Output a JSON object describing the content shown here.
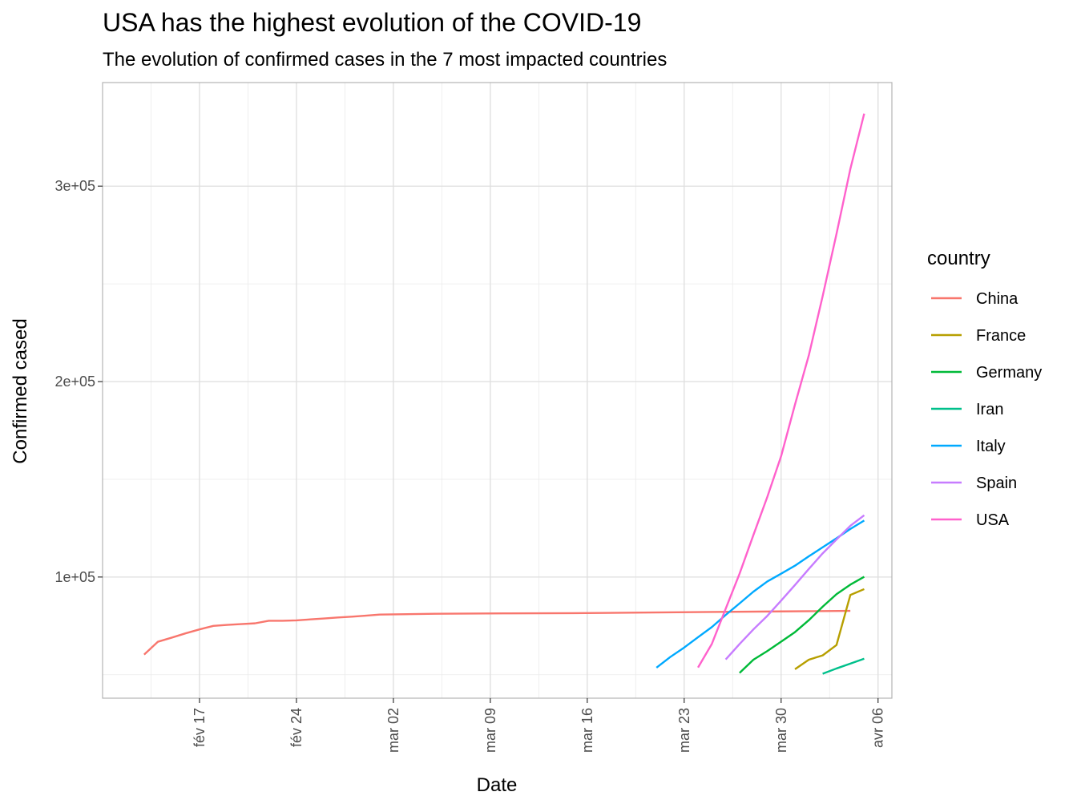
{
  "chart_data": {
    "type": "line",
    "title": "USA has the highest evolution of the COVID-19",
    "subtitle": "The evolution of confirmed cases in the 7 most impacted countries",
    "xlabel": "Date",
    "ylabel": "Confirmed cased",
    "x_axis": {
      "type": "date",
      "range": [
        "2020-02-10",
        "2020-04-07"
      ],
      "ticks": [
        {
          "date": "2020-02-17",
          "label": "fév 17"
        },
        {
          "date": "2020-02-24",
          "label": "fév 24"
        },
        {
          "date": "2020-03-02",
          "label": "mar 02"
        },
        {
          "date": "2020-03-09",
          "label": "mar 09"
        },
        {
          "date": "2020-03-16",
          "label": "mar 16"
        },
        {
          "date": "2020-03-23",
          "label": "mar 23"
        },
        {
          "date": "2020-03-30",
          "label": "mar 30"
        },
        {
          "date": "2020-04-06",
          "label": "avr 06"
        }
      ]
    },
    "y_axis": {
      "range": [
        38000,
        353000
      ],
      "ticks": [
        {
          "value": 100000,
          "label": "1e+05"
        },
        {
          "value": 200000,
          "label": "2e+05"
        },
        {
          "value": 300000,
          "label": "3e+05"
        }
      ],
      "minor_ticks": [
        50000,
        150000,
        250000
      ]
    },
    "grid": true,
    "legend": {
      "title": "country",
      "position": "right"
    },
    "series": [
      {
        "name": "China",
        "color": "#F8766D",
        "points": [
          [
            "2020-02-13",
            60300
          ],
          [
            "2020-02-14",
            66900
          ],
          [
            "2020-02-15",
            69000
          ],
          [
            "2020-02-16",
            71200
          ],
          [
            "2020-02-17",
            73200
          ],
          [
            "2020-02-18",
            75000
          ],
          [
            "2020-02-19",
            75500
          ],
          [
            "2020-02-20",
            75900
          ],
          [
            "2020-02-21",
            76300
          ],
          [
            "2020-02-22",
            77600
          ],
          [
            "2020-02-23",
            77600
          ],
          [
            "2020-02-24",
            77800
          ],
          [
            "2020-02-25",
            78300
          ],
          [
            "2020-02-26",
            78800
          ],
          [
            "2020-02-27",
            79300
          ],
          [
            "2020-02-28",
            79700
          ],
          [
            "2020-02-29",
            80200
          ],
          [
            "2020-03-01",
            80800
          ],
          [
            "2020-03-02",
            80900
          ],
          [
            "2020-03-05",
            81200
          ],
          [
            "2020-03-10",
            81400
          ],
          [
            "2020-03-15",
            81500
          ],
          [
            "2020-03-20",
            81800
          ],
          [
            "2020-03-25",
            82100
          ],
          [
            "2020-03-30",
            82400
          ],
          [
            "2020-04-04",
            82700
          ]
        ]
      },
      {
        "name": "France",
        "color": "#B79F00",
        "points": [
          [
            "2020-03-31",
            52800
          ],
          [
            "2020-04-01",
            57700
          ],
          [
            "2020-04-02",
            59900
          ],
          [
            "2020-04-03",
            65200
          ],
          [
            "2020-04-04",
            90800
          ],
          [
            "2020-04-05",
            93800
          ]
        ]
      },
      {
        "name": "Germany",
        "color": "#00BA38",
        "points": [
          [
            "2020-03-27",
            50900
          ],
          [
            "2020-03-28",
            57700
          ],
          [
            "2020-03-29",
            62100
          ],
          [
            "2020-03-30",
            66900
          ],
          [
            "2020-03-31",
            71800
          ],
          [
            "2020-04-01",
            77900
          ],
          [
            "2020-04-02",
            84800
          ],
          [
            "2020-04-03",
            91200
          ],
          [
            "2020-04-04",
            96100
          ],
          [
            "2020-04-05",
            100100
          ]
        ]
      },
      {
        "name": "Iran",
        "color": "#00C08B",
        "points": [
          [
            "2020-04-02",
            50500
          ],
          [
            "2020-04-03",
            53200
          ],
          [
            "2020-04-04",
            55700
          ],
          [
            "2020-04-05",
            58200
          ]
        ]
      },
      {
        "name": "Italy",
        "color": "#00A9FF",
        "points": [
          [
            "2020-03-21",
            53600
          ],
          [
            "2020-03-22",
            59100
          ],
          [
            "2020-03-23",
            63900
          ],
          [
            "2020-03-24",
            69200
          ],
          [
            "2020-03-25",
            74400
          ],
          [
            "2020-03-26",
            80600
          ],
          [
            "2020-03-27",
            86500
          ],
          [
            "2020-03-28",
            92500
          ],
          [
            "2020-03-29",
            97700
          ],
          [
            "2020-03-30",
            101700
          ],
          [
            "2020-03-31",
            105800
          ],
          [
            "2020-04-01",
            110600
          ],
          [
            "2020-04-02",
            115200
          ],
          [
            "2020-04-03",
            119800
          ],
          [
            "2020-04-04",
            124600
          ],
          [
            "2020-04-05",
            128900
          ]
        ]
      },
      {
        "name": "Spain",
        "color": "#C77CFF",
        "points": [
          [
            "2020-03-26",
            57800
          ],
          [
            "2020-03-27",
            65700
          ],
          [
            "2020-03-28",
            73200
          ],
          [
            "2020-03-29",
            80100
          ],
          [
            "2020-03-30",
            87900
          ],
          [
            "2020-03-31",
            95900
          ],
          [
            "2020-04-01",
            104100
          ],
          [
            "2020-04-02",
            112100
          ],
          [
            "2020-04-03",
            119200
          ],
          [
            "2020-04-04",
            126200
          ],
          [
            "2020-04-05",
            131600
          ]
        ]
      },
      {
        "name": "USA",
        "color": "#FF61CC",
        "points": [
          [
            "2020-03-24",
            53700
          ],
          [
            "2020-03-25",
            65800
          ],
          [
            "2020-03-26",
            83800
          ],
          [
            "2020-03-27",
            101700
          ],
          [
            "2020-03-28",
            121500
          ],
          [
            "2020-03-29",
            140900
          ],
          [
            "2020-03-30",
            161800
          ],
          [
            "2020-03-31",
            188200
          ],
          [
            "2020-04-01",
            213400
          ],
          [
            "2020-04-02",
            243700
          ],
          [
            "2020-04-03",
            275600
          ],
          [
            "2020-04-04",
            308800
          ],
          [
            "2020-04-05",
            337100
          ]
        ]
      }
    ]
  }
}
